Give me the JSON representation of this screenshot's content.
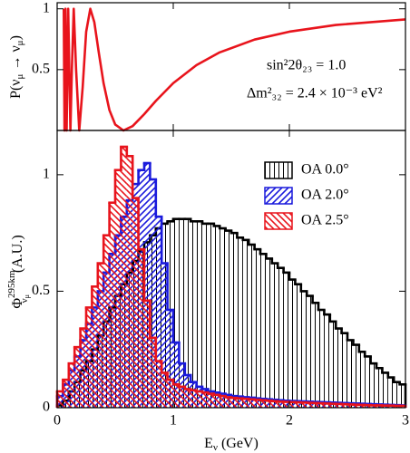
{
  "chart_data": [
    {
      "type": "line",
      "ylabel": [
        "P(ν",
        "μ",
        " → ν",
        "μ",
        ")"
      ],
      "annotations": [
        "sin²2θ₂₃ = 1.0",
        "Δm²₃₂ = 2.4 × 10⁻³ eV²"
      ],
      "x": [
        0.0571,
        0.0634,
        0.0714,
        0.0816,
        0.0952,
        0.1142,
        0.1268,
        0.1428,
        0.1631,
        0.1903,
        0.22,
        0.25,
        0.2855,
        0.32,
        0.36,
        0.4,
        0.45,
        0.5,
        0.571,
        0.65,
        0.75,
        0.85,
        1.0,
        1.2,
        1.4,
        1.7,
        2.0,
        2.4,
        3.0
      ],
      "values": [
        1,
        0,
        1,
        0,
        1,
        0,
        0.5,
        1,
        0.5,
        0,
        0.357,
        0.812,
        1,
        0.891,
        0.632,
        0.388,
        0.168,
        0.049,
        0,
        0.036,
        0.134,
        0.243,
        0.389,
        0.537,
        0.642,
        0.747,
        0.812,
        0.867,
        0.913
      ],
      "color": "#e8141c",
      "xlim": [
        0,
        3
      ],
      "xticks": [
        0,
        1,
        2,
        3
      ],
      "ylim": [
        0,
        1.05
      ],
      "yticks": [
        0.5,
        1
      ]
    },
    {
      "type": "histogram",
      "xlabel": [
        "E",
        "ν",
        " (GeV)"
      ],
      "ylabel": [
        "Φ",
        "295km",
        "ν",
        "μ",
        " (A.U.)"
      ],
      "bins": [
        0,
        0.05,
        0.1,
        0.15,
        0.2,
        0.25,
        0.3,
        0.35,
        0.4,
        0.45,
        0.5,
        0.55,
        0.6,
        0.65,
        0.7,
        0.75,
        0.8,
        0.85,
        0.9,
        0.95,
        1.0,
        1.05,
        1.1,
        1.15,
        1.2,
        1.25,
        1.3,
        1.35,
        1.4,
        1.45,
        1.5,
        1.55,
        1.6,
        1.65,
        1.7,
        1.75,
        1.8,
        1.85,
        1.9,
        1.95,
        2.0,
        2.05,
        2.1,
        2.15,
        2.2,
        2.25,
        2.3,
        2.35,
        2.4,
        2.45,
        2.5,
        2.55,
        2.6,
        2.65,
        2.7,
        2.75,
        2.8,
        2.85,
        2.9,
        2.95,
        3.0
      ],
      "series": [
        {
          "name": "OA 0.0°",
          "color": "#000000",
          "hatch": "|",
          "values": [
            0.01,
            0.03,
            0.07,
            0.11,
            0.16,
            0.2,
            0.25,
            0.31,
            0.37,
            0.43,
            0.48,
            0.53,
            0.58,
            0.63,
            0.67,
            0.71,
            0.74,
            0.77,
            0.79,
            0.8,
            0.81,
            0.81,
            0.81,
            0.8,
            0.8,
            0.79,
            0.79,
            0.78,
            0.77,
            0.76,
            0.75,
            0.73,
            0.72,
            0.7,
            0.68,
            0.66,
            0.64,
            0.62,
            0.6,
            0.58,
            0.55,
            0.53,
            0.5,
            0.48,
            0.45,
            0.42,
            0.4,
            0.37,
            0.34,
            0.32,
            0.29,
            0.27,
            0.24,
            0.22,
            0.19,
            0.17,
            0.15,
            0.13,
            0.11,
            0.1
          ]
        },
        {
          "name": "OA 2.0°",
          "color": "#1a1adc",
          "hatch": "/",
          "values": [
            0.05,
            0.1,
            0.16,
            0.22,
            0.29,
            0.36,
            0.43,
            0.5,
            0.58,
            0.66,
            0.74,
            0.82,
            0.89,
            0.96,
            1.02,
            1.05,
            0.98,
            0.82,
            0.62,
            0.42,
            0.28,
            0.19,
            0.14,
            0.11,
            0.09,
            0.08,
            0.07,
            0.065,
            0.06,
            0.055,
            0.05,
            0.048,
            0.045,
            0.043,
            0.04,
            0.038,
            0.036,
            0.034,
            0.032,
            0.03,
            0.029,
            0.028,
            0.027,
            0.026,
            0.025,
            0.024,
            0.023,
            0.022,
            0.021,
            0.02,
            0.019,
            0.018,
            0.017,
            0.016,
            0.015,
            0.014,
            0.013,
            0.012,
            0.011,
            0.01
          ]
        },
        {
          "name": "OA 2.5°",
          "color": "#e8141c",
          "hatch": "\\",
          "values": [
            0.07,
            0.12,
            0.19,
            0.26,
            0.34,
            0.43,
            0.52,
            0.62,
            0.74,
            0.88,
            1.02,
            1.12,
            1.08,
            0.9,
            0.68,
            0.46,
            0.3,
            0.2,
            0.15,
            0.12,
            0.1,
            0.09,
            0.08,
            0.075,
            0.07,
            0.065,
            0.06,
            0.055,
            0.05,
            0.045,
            0.042,
            0.04,
            0.038,
            0.036,
            0.034,
            0.032,
            0.03,
            0.028,
            0.026,
            0.025,
            0.024,
            0.023,
            0.022,
            0.021,
            0.02,
            0.019,
            0.018,
            0.017,
            0.016,
            0.015,
            0.014,
            0.013,
            0.012,
            0.011,
            0.01,
            0.01,
            0.009,
            0.009,
            0.008,
            0.008
          ]
        }
      ],
      "legend": "upper right",
      "xlim": [
        0,
        3
      ],
      "xticks": [
        0,
        1,
        2,
        3
      ],
      "ylim": [
        0,
        1.19
      ],
      "yticks": [
        0,
        0.5,
        1
      ]
    }
  ]
}
